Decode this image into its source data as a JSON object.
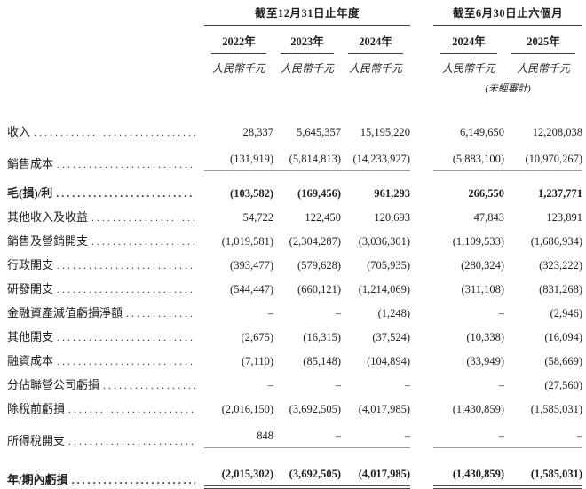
{
  "style": {
    "ink": "#1f1f1f",
    "light_rule": "#9a9a9a",
    "dark_rule": "#3d3d3d",
    "background": "#ffffff"
  },
  "table": {
    "groups": [
      {
        "label": "截至12月31日止年度",
        "years": [
          "2022年",
          "2023年",
          "2024年"
        ]
      },
      {
        "label": "截至6月30日止六個月",
        "years": [
          "2024年",
          "2025年"
        ]
      }
    ],
    "currency_label": "人民幣千元",
    "unaudited_note": "(未經審計)",
    "rows": [
      {
        "label": "收入",
        "values": [
          "28,337",
          "5,645,357",
          "15,195,220",
          "6,149,650",
          "12,208,038"
        ]
      },
      {
        "label": "銷售成本",
        "values": [
          "(131,919)",
          "(5,814,813)",
          "(14,233,927)",
          "(5,883,100)",
          "(10,970,267)"
        ]
      },
      {
        "label": "毛(損)/利",
        "values": [
          "(103,582)",
          "(169,456)",
          "961,293",
          "266,550",
          "1,237,771"
        ]
      },
      {
        "label": "其他收入及收益",
        "values": [
          "54,722",
          "122,450",
          "120,693",
          "47,843",
          "123,891"
        ]
      },
      {
        "label": "銷售及營銷開支",
        "values": [
          "(1,019,581)",
          "(2,304,287)",
          "(3,036,301)",
          "(1,109,533)",
          "(1,686,934)"
        ]
      },
      {
        "label": "行政開支",
        "values": [
          "(393,477)",
          "(579,628)",
          "(705,935)",
          "(280,324)",
          "(323,222)"
        ]
      },
      {
        "label": "研發開支",
        "values": [
          "(544,447)",
          "(660,121)",
          "(1,214,069)",
          "(311,108)",
          "(831,268)"
        ]
      },
      {
        "label": "金融資產減值虧損淨額",
        "values": [
          "–",
          "–",
          "(1,248)",
          "–",
          "(2,946)"
        ]
      },
      {
        "label": "其他開支",
        "values": [
          "(2,675)",
          "(16,315)",
          "(37,524)",
          "(10,338)",
          "(16,094)"
        ]
      },
      {
        "label": "融資成本",
        "values": [
          "(7,110)",
          "(85,148)",
          "(104,894)",
          "(33,949)",
          "(58,669)"
        ]
      },
      {
        "label": "分佔聯營公司虧損",
        "values": [
          "–",
          "–",
          "–",
          "–",
          "(27,560)"
        ]
      },
      {
        "label": "除稅前虧損",
        "values": [
          "(2,016,150)",
          "(3,692,505)",
          "(4,017,985)",
          "(1,430,859)",
          "(1,585,031)"
        ]
      },
      {
        "label": "所得稅開支",
        "values": [
          "848",
          "–",
          "–",
          "–",
          "–"
        ]
      },
      {
        "label": "年/期內虧損",
        "values": [
          "(2,015,302)",
          "(3,692,505)",
          "(4,017,985)",
          "(1,430,859)",
          "(1,585,031)"
        ]
      }
    ]
  }
}
